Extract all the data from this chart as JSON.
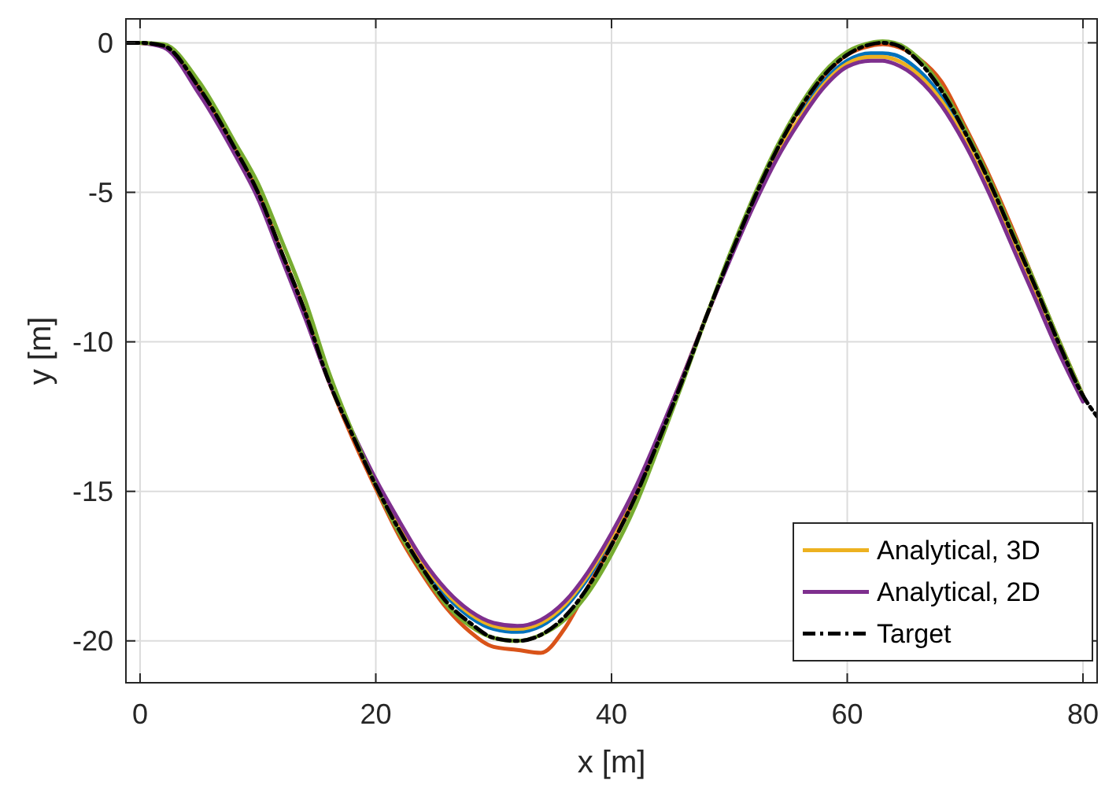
{
  "chart_data": {
    "type": "line",
    "xlabel": "x [m]",
    "ylabel": "y [m]",
    "x": [
      0,
      2,
      5,
      8,
      10,
      12,
      14,
      16,
      18,
      20,
      22,
      24,
      26,
      28,
      30,
      32,
      34,
      36,
      38,
      40,
      42,
      44,
      46,
      48,
      50,
      52,
      54,
      56,
      58,
      60,
      62,
      63,
      64,
      66,
      68,
      70,
      72,
      74,
      76,
      78,
      80
    ],
    "xlim": [
      -1.2,
      81.2
    ],
    "xticks": [
      0,
      20,
      40,
      60,
      80
    ],
    "ylim": [
      -21.4,
      0.8
    ],
    "yticks": [
      -20,
      -15,
      -10,
      -5,
      0
    ],
    "grid": true,
    "legend": "bottom right",
    "line_style": "solid",
    "marker": "none",
    "series": [
      {
        "color": "#0072bd",
        "values": [
          null,
          null,
          null,
          null,
          null,
          null,
          null,
          null,
          null,
          null,
          null,
          -17.5,
          -18.5,
          -19.2,
          -19.6,
          -19.7,
          -19.5,
          -18.9,
          -17.9,
          -16.6,
          null,
          null,
          null,
          null,
          null,
          null,
          null,
          -2.4,
          -1.3,
          -0.6,
          -0.35,
          -0.35,
          -0.4,
          -0.9,
          -1.8,
          -3.1,
          null,
          null,
          null,
          null,
          null
        ]
      },
      {
        "color": "#d95319",
        "values": [
          0,
          -0.1,
          -1.5,
          -3.5,
          -5.0,
          -7.0,
          -9.0,
          -11.3,
          -13.2,
          -14.9,
          -16.5,
          -17.8,
          -18.9,
          -19.7,
          -20.2,
          -20.3,
          -20.4,
          -19.6,
          -18.2,
          -16.8,
          -15.2,
          -13.3,
          -11.3,
          -9.2,
          -7.2,
          -5.3,
          -3.6,
          -2.2,
          -1.1,
          -0.4,
          -0.1,
          -0.05,
          -0.1,
          -0.5,
          -1.3,
          -2.8,
          -4.4,
          -6.2,
          -8.1,
          -10.0,
          -11.8
        ]
      },
      {
        "name": "Analytical, 3D",
        "color": "#edb120",
        "values": [
          0,
          -0.12,
          -1.65,
          -3.65,
          -5.15,
          -7.15,
          -9.15,
          -11.3,
          -13.05,
          -14.65,
          -16.1,
          -17.4,
          -18.4,
          -19.1,
          -19.5,
          -19.6,
          -19.4,
          -18.8,
          -17.8,
          -16.5,
          -14.95,
          -13.15,
          -11.2,
          -9.2,
          -7.25,
          -5.45,
          -3.8,
          -2.5,
          -1.4,
          -0.7,
          -0.47,
          -0.47,
          -0.55,
          -1.05,
          -1.95,
          -3.25,
          -4.85,
          -6.65,
          -8.45,
          -10.3,
          -11.95
        ]
      },
      {
        "name": "Analytical, 2D",
        "color": "#7e2f8e",
        "values": [
          0,
          -0.15,
          -1.7,
          -3.7,
          -5.2,
          -7.2,
          -9.2,
          -11.3,
          -13.0,
          -14.6,
          -16.0,
          -17.3,
          -18.3,
          -19.0,
          -19.4,
          -19.5,
          -19.3,
          -18.7,
          -17.7,
          -16.4,
          -14.9,
          -13.1,
          -11.2,
          -9.2,
          -7.3,
          -5.5,
          -3.9,
          -2.6,
          -1.5,
          -0.8,
          -0.6,
          -0.6,
          -0.7,
          -1.2,
          -2.1,
          -3.4,
          -5.0,
          -6.8,
          -8.6,
          -10.4,
          -12.0
        ]
      },
      {
        "color": "#77ac30",
        "values": [
          0,
          -0.05,
          -1.3,
          -3.3,
          -4.7,
          -6.6,
          -8.6,
          -11.0,
          -13.0,
          -14.8,
          -16.4,
          -17.7,
          -18.8,
          -19.5,
          -19.9,
          -20.0,
          -19.8,
          -19.3,
          -18.4,
          -17.1,
          -15.5,
          -13.5,
          -11.4,
          -9.2,
          -7.1,
          -5.2,
          -3.5,
          -2.1,
          -1.0,
          -0.3,
          0.0,
          0.05,
          0.0,
          -0.5,
          -1.5,
          -2.9,
          -4.5,
          -6.3,
          -8.1,
          -10.0,
          -11.8
        ]
      },
      {
        "name": "Target",
        "color": "#000000",
        "line_style": "dashdot",
        "x": [
          -1.2,
          0,
          2,
          5,
          8,
          10,
          12,
          14,
          16,
          18,
          20,
          22,
          24,
          26,
          28,
          30,
          32,
          34,
          36,
          38,
          40,
          42,
          44,
          46,
          48,
          50,
          52,
          54,
          56,
          58,
          60,
          62,
          63,
          64,
          66,
          68,
          70,
          72,
          74,
          76,
          78,
          80,
          81.2
        ],
        "values": [
          0,
          0,
          -0.1,
          -1.5,
          -3.5,
          -5,
          -7,
          -9,
          -11.3,
          -13.1,
          -14.8,
          -16.3,
          -17.6,
          -18.7,
          -19.4,
          -19.9,
          -20,
          -19.8,
          -19.2,
          -18.2,
          -16.8,
          -15.2,
          -13.3,
          -11.3,
          -9.2,
          -7.2,
          -5.3,
          -3.6,
          -2.2,
          -1.1,
          -0.4,
          -0.05,
          0,
          -0.05,
          -0.6,
          -1.6,
          -3,
          -4.6,
          -6.4,
          -8.2,
          -10.1,
          -11.8,
          -12.5
        ]
      }
    ]
  }
}
